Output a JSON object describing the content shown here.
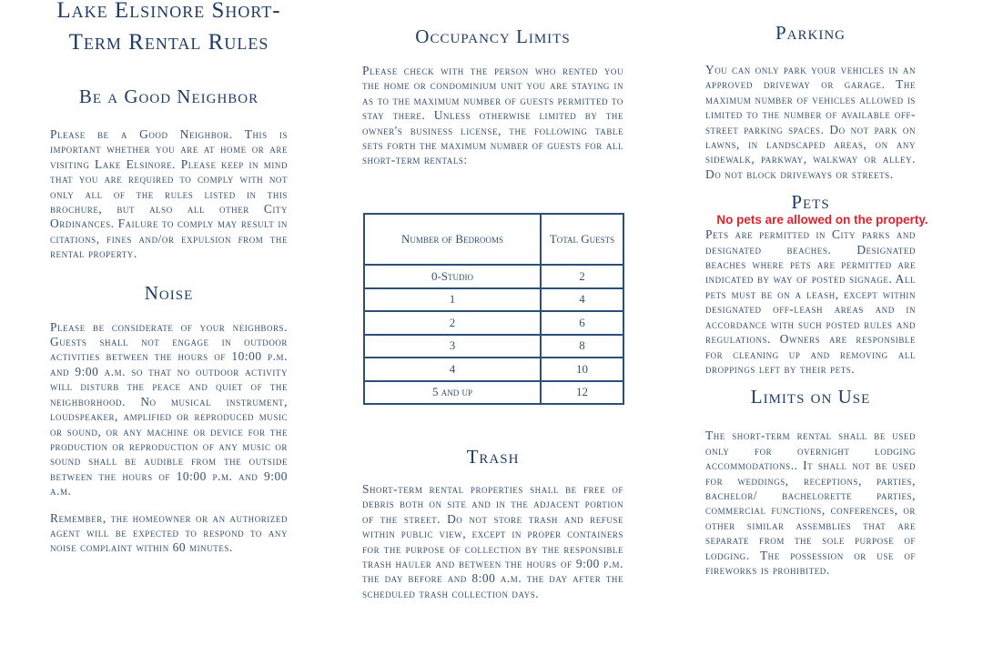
{
  "title": "Lake Elsinore Short-Term Rental Rules",
  "sections": {
    "good_neighbor": {
      "heading": "Be a Good Neighbor",
      "body": "Please be a Good Neighbor.  This is important whether you are at home or are visiting Lake Elsinore. Please keep in mind that you are required to comply with not only all of the rules listed in this brochure, but also all other City Ordinances.  Failure to comply may result in citations, fines and/or expulsion from the rental property."
    },
    "noise": {
      "heading": "Noise",
      "body": "Please be considerate of your neighbors.  Guests shall not engage in outdoor activities between the hours of 10:00 p.m. and 9:00 a.m. so that no outdoor activity will disturb the peace and quiet of the neighborhood.  No musical instrument, loudspeaker, amplified or reproduced music or sound, or any machine or device for the production or reproduction of any music or sound shall be audible from the outside between the hours of 10:00 p.m. and 9:00 a.m.",
      "body2": "Remember, the homeowner or an authorized agent will be expected to respond to any noise complaint within 60 minutes."
    },
    "occupancy": {
      "heading": "Occupancy Limits",
      "body": "Please check with the person who rented you the home or condominium unit you are staying in as to the maximum number of guests permitted to stay there.  Unless otherwise limited by the owner's business license, the following table sets forth the maximum number of guests for all short-term rentals:",
      "table": {
        "headers": [
          "Number of Bedrooms",
          "Total Guests"
        ],
        "rows": [
          [
            "0-Studio",
            "2"
          ],
          [
            "1",
            "4"
          ],
          [
            "2",
            "6"
          ],
          [
            "3",
            "8"
          ],
          [
            "4",
            "10"
          ],
          [
            "5 and up",
            "12"
          ]
        ]
      }
    },
    "trash": {
      "heading": "Trash",
      "body": "Short-term rental properties shall be free of debris both on site and in the adjacent portion of the street.  Do not store trash and refuse within public view, except in proper containers for the purpose of collection by the responsible trash hauler and between the hours of 9:00 p.m. the day before and 8:00 a.m. the day after the scheduled trash collection days."
    },
    "parking": {
      "heading": "Parking",
      "body": "You can only park your vehicles in an approved driveway or garage. The maximum number of vehicles allowed is limited to the number of available off-street parking spaces. Do not park on lawns, in landscaped areas, on any sidewalk, parkway, walkway or alley. Do not block driveways or streets."
    },
    "pets": {
      "heading": "Pets",
      "notice": "No pets are allowed on the property.",
      "body": "Pets are permitted in City parks and designated beaches. Designated beaches where pets are permitted are indicated by way of posted signage. All pets must be on a leash, except within designated off-leash areas and in accordance with such posted rules and regulations. Owners are responsible for cleaning up and removing all droppings left by their pets."
    },
    "limits": {
      "heading": "Limits on Use",
      "body": "The short-term rental shall be used only for overnight lodging accommodations..  It shall not be used for weddings, receptions, parties, bachelor/ bachelorette parties, commercial functions, conferences, or other similar assemblies that are separate from the sole purpose of lodging.  The possession or use of fireworks is prohibited."
    }
  },
  "colors": {
    "heading": "#1d3c66",
    "body": "#33506f",
    "notice": "#e0202a"
  }
}
